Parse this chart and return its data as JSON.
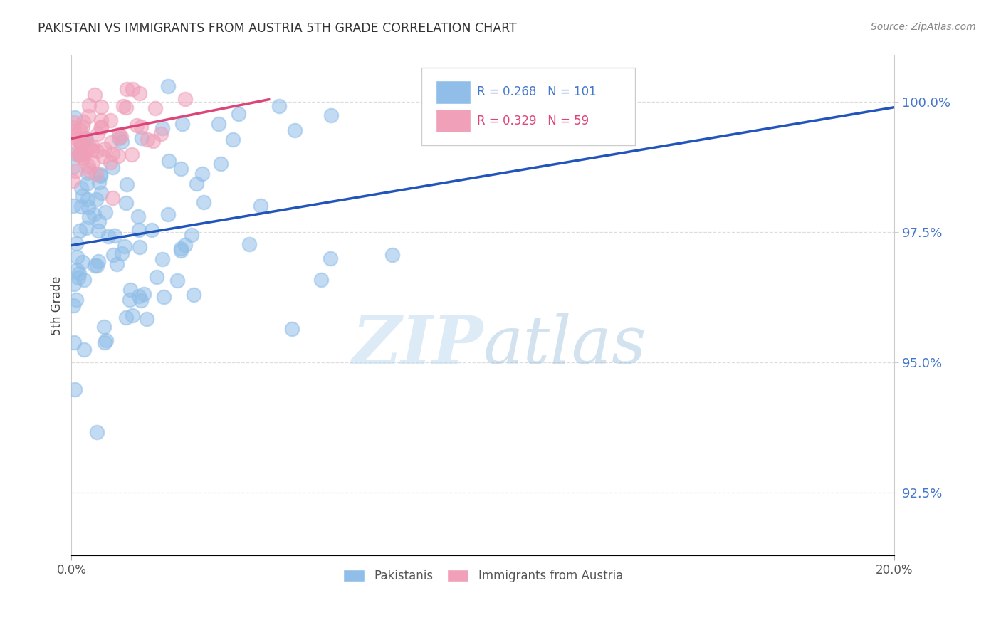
{
  "title": "PAKISTANI VS IMMIGRANTS FROM AUSTRIA 5TH GRADE CORRELATION CHART",
  "source": "Source: ZipAtlas.com",
  "ylabel": "5th Grade",
  "ytick_values": [
    92.5,
    95.0,
    97.5,
    100.0
  ],
  "xlim": [
    0.0,
    20.0
  ],
  "ylim": [
    91.3,
    100.9
  ],
  "blue_color": "#90BEE8",
  "pink_color": "#F0A0B8",
  "blue_line_color": "#2255BB",
  "pink_line_color": "#DD4477",
  "legend_blue_R": "0.268",
  "legend_blue_N": "101",
  "legend_pink_R": "0.329",
  "legend_pink_N": "59",
  "blue_trend_x": [
    0.0,
    20.0
  ],
  "blue_trend_y": [
    97.25,
    99.9
  ],
  "pink_trend_x": [
    0.0,
    4.8
  ],
  "pink_trend_y": [
    99.3,
    100.05
  ],
  "watermark_zip": "ZIP",
  "watermark_atlas": "atlas",
  "background_color": "#FFFFFF",
  "grid_color": "#DDDDDD",
  "tick_color": "#4477CC",
  "bottom_legend_blue": "Pakistanis",
  "bottom_legend_pink": "Immigrants from Austria"
}
